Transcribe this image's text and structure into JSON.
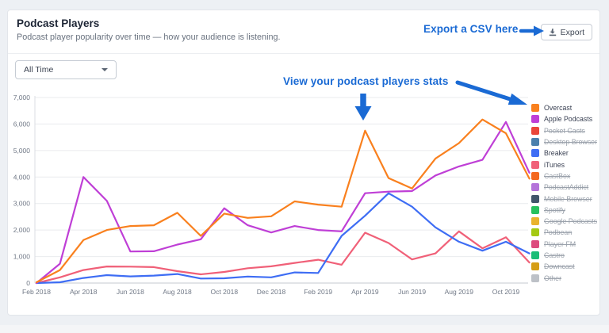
{
  "annotations": {
    "export_csv": "Export a CSV here",
    "view_stats": "View your podcast players stats",
    "color": "#1a6ad4"
  },
  "header": {
    "title": "Podcast Players",
    "subtitle": "Podcast player popularity over time — how your audience is listening.",
    "export_label": "Export"
  },
  "filters": {
    "time_range_value": "All Time"
  },
  "chart_data": {
    "type": "line",
    "x": [
      "Feb 2018",
      "Mar 2018",
      "Apr 2018",
      "May 2018",
      "Jun 2018",
      "Jul 2018",
      "Aug 2018",
      "Sep 2018",
      "Oct 2018",
      "Nov 2018",
      "Dec 2018",
      "Jan 2019",
      "Feb 2019",
      "Mar 2019",
      "Apr 2019",
      "May 2019",
      "Jun 2019",
      "Jul 2019",
      "Aug 2019",
      "Sep 2019",
      "Oct 2019",
      "Nov 2019"
    ],
    "xtick_labels": [
      "Feb 2018",
      "Apr 2018",
      "Jun 2018",
      "Aug 2018",
      "Oct 2018",
      "Dec 2018",
      "Feb 2019",
      "Apr 2019",
      "Jun 2019",
      "Aug 2019",
      "Oct 2019"
    ],
    "xtick_indices": [
      0,
      2,
      4,
      6,
      8,
      10,
      12,
      14,
      16,
      18,
      20
    ],
    "ylim": [
      0,
      7000
    ],
    "yticks": [
      0,
      1000,
      2000,
      3000,
      4000,
      5000,
      6000,
      7000
    ],
    "ytick_labels": [
      "0",
      "1,000",
      "2,000",
      "3,000",
      "4,000",
      "5,000",
      "6,000",
      "7,000"
    ],
    "grid": true,
    "legend_position": "right",
    "series": [
      {
        "name": "Overcast",
        "color": "#f9801e",
        "hidden": false,
        "values": [
          30,
          490,
          1620,
          2000,
          2150,
          2180,
          2650,
          1780,
          2620,
          2460,
          2520,
          3080,
          2960,
          2880,
          5750,
          3960,
          3570,
          4700,
          5280,
          6170,
          5650,
          3940
        ]
      },
      {
        "name": "Apple Podcasts",
        "color": "#bf3fd6",
        "hidden": false,
        "values": [
          0,
          730,
          4000,
          3100,
          1190,
          1200,
          1450,
          1650,
          2820,
          2180,
          1910,
          2150,
          2000,
          1950,
          3390,
          3450,
          3470,
          4060,
          4400,
          4650,
          6080,
          4160
        ]
      },
      {
        "name": "Pocket Casts",
        "color": "#ea4639",
        "hidden": true,
        "values": null
      },
      {
        "name": "Desktop Browser",
        "color": "#4b80ad",
        "hidden": true,
        "values": null
      },
      {
        "name": "Breaker",
        "color": "#3e6df4",
        "hidden": false,
        "values": [
          0,
          30,
          190,
          300,
          250,
          280,
          340,
          170,
          180,
          245,
          215,
          400,
          380,
          1780,
          2540,
          3390,
          2880,
          2100,
          1560,
          1220,
          1560,
          1120
        ]
      },
      {
        "name": "iTunes",
        "color": "#f06078",
        "hidden": false,
        "values": [
          0,
          215,
          490,
          625,
          620,
          600,
          450,
          330,
          420,
          560,
          630,
          760,
          880,
          690,
          1900,
          1510,
          890,
          1120,
          1950,
          1310,
          1725,
          775
        ]
      },
      {
        "name": "CastBox",
        "color": "#f4681f",
        "hidden": true,
        "values": null
      },
      {
        "name": "PodcastAddict",
        "color": "#b473da",
        "hidden": true,
        "values": null
      },
      {
        "name": "Mobile Browser",
        "color": "#41566b",
        "hidden": true,
        "values": null
      },
      {
        "name": "Spotify",
        "color": "#27c15e",
        "hidden": true,
        "values": null
      },
      {
        "name": "Google Podcasts",
        "color": "#e9b32e",
        "hidden": true,
        "values": null
      },
      {
        "name": "Podbean",
        "color": "#a4c913",
        "hidden": true,
        "values": null
      },
      {
        "name": "Player FM",
        "color": "#dd4a7e",
        "hidden": true,
        "values": null
      },
      {
        "name": "Castro",
        "color": "#1abd76",
        "hidden": true,
        "values": null
      },
      {
        "name": "Downcast",
        "color": "#d59d16",
        "hidden": true,
        "values": null
      },
      {
        "name": "Other",
        "color": "#bdc1c7",
        "hidden": true,
        "values": null
      }
    ]
  }
}
